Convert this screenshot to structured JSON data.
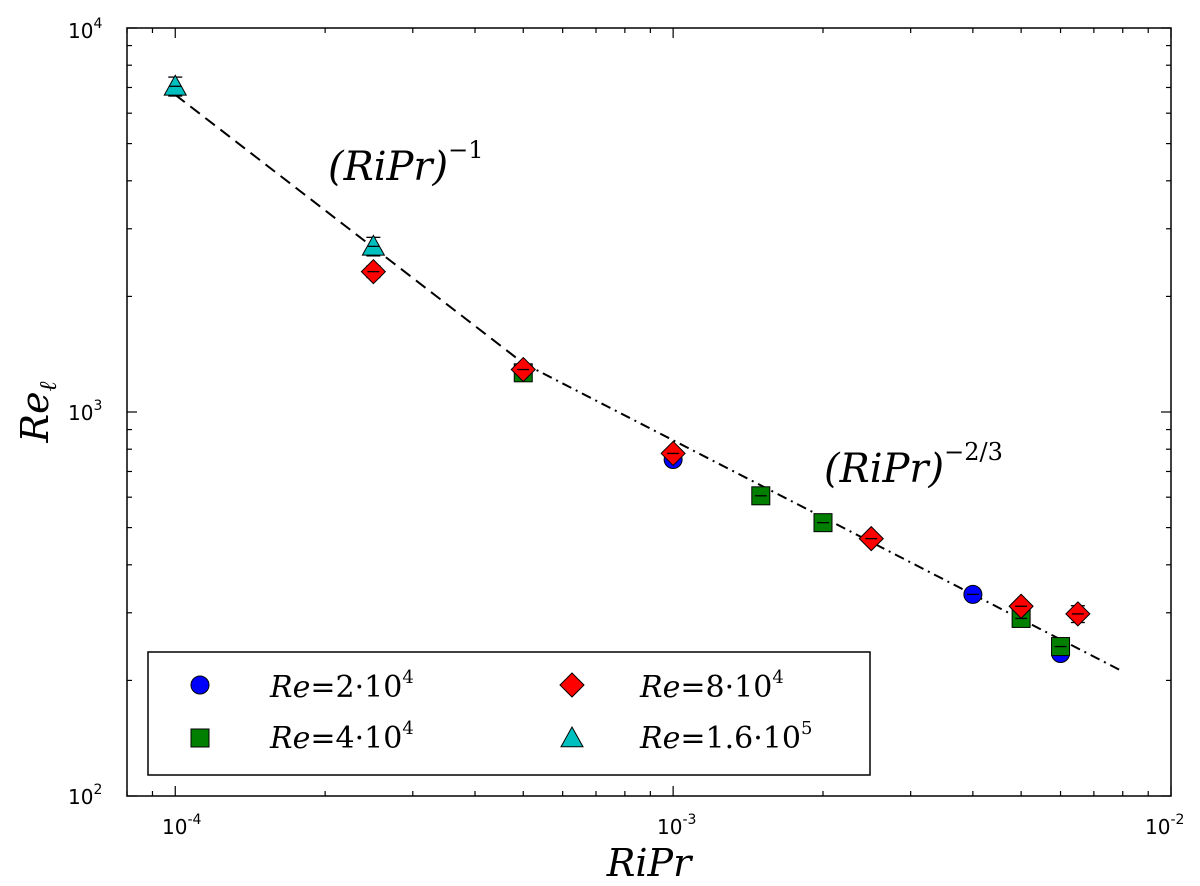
{
  "chart_data": {
    "type": "scatter",
    "xscale": "log",
    "yscale": "log",
    "xlim": [
      8e-05,
      0.01
    ],
    "ylim": [
      100,
      10000
    ],
    "xticks": [
      {
        "value": 0.0001,
        "base": "10",
        "exp": "-4"
      },
      {
        "value": 0.001,
        "base": "10",
        "exp": "-3"
      },
      {
        "value": 0.01,
        "base": "10",
        "exp": "-2"
      }
    ],
    "yticks": [
      {
        "value": 100,
        "base": "10",
        "exp": "2"
      },
      {
        "value": 1000,
        "base": "10",
        "exp": "3"
      },
      {
        "value": 10000,
        "base": "10",
        "exp": "4"
      }
    ],
    "xlabel": "RiPr",
    "ylabel": {
      "main": "Re",
      "sub": "ℓ"
    },
    "series": [
      {
        "name": "Re=2·10^4",
        "label": {
          "prefix": "Re",
          "eq": "=",
          "mant": "2",
          "dot": "·",
          "base": "10",
          "exp": "4"
        },
        "marker": "circle",
        "color": "#0000ff",
        "points": [
          {
            "x": 0.001,
            "y": 752,
            "err": 6
          },
          {
            "x": 0.004,
            "y": 335,
            "err": 4
          },
          {
            "x": 0.006,
            "y": 235,
            "err": 5
          }
        ]
      },
      {
        "name": "Re=4·10^4",
        "label": {
          "prefix": "Re",
          "eq": "=",
          "mant": "4",
          "dot": "·",
          "base": "10",
          "exp": "4"
        },
        "marker": "square",
        "color": "#007f00",
        "points": [
          {
            "x": 0.0005,
            "y": 1265,
            "err": 10
          },
          {
            "x": 0.0015,
            "y": 605,
            "err": 6
          },
          {
            "x": 0.002,
            "y": 515,
            "err": 6
          },
          {
            "x": 0.005,
            "y": 290,
            "err": 6
          },
          {
            "x": 0.006,
            "y": 245,
            "err": 6
          }
        ]
      },
      {
        "name": "Re=8·10^4",
        "label": {
          "prefix": "Re",
          "eq": "=",
          "mant": "8",
          "dot": "·",
          "base": "10",
          "exp": "4"
        },
        "marker": "diamond",
        "color": "#ff0000",
        "points": [
          {
            "x": 0.00025,
            "y": 2320,
            "err": 80
          },
          {
            "x": 0.0005,
            "y": 1290,
            "err": 15
          },
          {
            "x": 0.001,
            "y": 780,
            "err": 10
          },
          {
            "x": 0.0025,
            "y": 468,
            "err": 5
          },
          {
            "x": 0.005,
            "y": 312,
            "err": 8
          },
          {
            "x": 0.0065,
            "y": 298,
            "err": 15
          }
        ]
      },
      {
        "name": "Re=1.6·10^5",
        "label": {
          "prefix": "Re",
          "eq": "=",
          "mant": "1.6",
          "dot": "·",
          "base": "10",
          "exp": "5"
        },
        "marker": "triangle",
        "color": "#00bfbf",
        "points": [
          {
            "x": 0.0001,
            "y": 7050,
            "err": 400
          },
          {
            "x": 0.00025,
            "y": 2700,
            "err": 150
          }
        ]
      }
    ],
    "fit_lines": [
      {
        "name": "slope-minus-one",
        "style": "dashed",
        "x": [
          0.0001,
          0.0005
        ],
        "y": [
          6700,
          1340
        ]
      },
      {
        "name": "slope-minus-two-thirds",
        "style": "dash-dot",
        "x": [
          0.0005,
          0.008
        ],
        "y": [
          1340,
          211
        ]
      }
    ],
    "annotations": [
      {
        "name": "annotation-minus-one",
        "text": "(RiPr)",
        "exp": "−1",
        "x": 0.0002,
        "y": 4300
      },
      {
        "name": "annotation-minus-two-thirds",
        "text": "(RiPr)",
        "exp": "−2/3",
        "x": 0.00205,
        "y": 650
      }
    ],
    "legend": {
      "position": "lower-left",
      "columns": 2
    }
  }
}
